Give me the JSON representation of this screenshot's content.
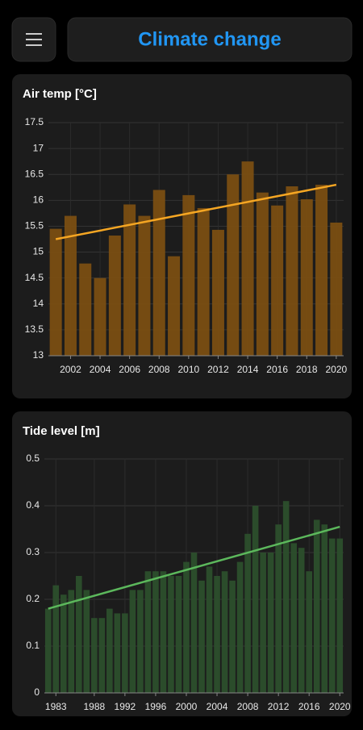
{
  "header": {
    "title": "Climate change"
  },
  "chart_data": [
    {
      "type": "bar",
      "title": "Air temp [°C]",
      "x": [
        2001,
        2002,
        2003,
        2004,
        2005,
        2006,
        2007,
        2008,
        2009,
        2010,
        2011,
        2012,
        2013,
        2014,
        2015,
        2016,
        2017,
        2018,
        2019,
        2020
      ],
      "values": [
        15.45,
        15.7,
        14.78,
        14.5,
        15.32,
        15.92,
        15.7,
        16.2,
        14.92,
        16.1,
        15.85,
        15.43,
        16.5,
        16.75,
        16.15,
        15.9,
        16.27,
        16.02,
        16.3,
        15.57
      ],
      "color": "#7a4e12",
      "trend": {
        "x": [
          2001,
          2020
        ],
        "values": [
          15.25,
          16.3
        ],
        "color": "#f5a623"
      },
      "xlim": [
        2000.5,
        2020.5
      ],
      "xticks": [
        2002,
        2004,
        2006,
        2008,
        2010,
        2012,
        2014,
        2016,
        2018,
        2020
      ],
      "ylim": [
        13,
        17.5
      ],
      "yticks": [
        13,
        13.5,
        14,
        14.5,
        15,
        15.5,
        16,
        16.5,
        17,
        17.5
      ],
      "grid": true
    },
    {
      "type": "bar",
      "title": "Tide level [m]",
      "x": [
        1982,
        1983,
        1984,
        1985,
        1986,
        1987,
        1988,
        1989,
        1990,
        1991,
        1992,
        1993,
        1994,
        1995,
        1996,
        1997,
        1998,
        1999,
        2000,
        2001,
        2002,
        2003,
        2004,
        2005,
        2006,
        2007,
        2008,
        2009,
        2010,
        2011,
        2012,
        2013,
        2014,
        2015,
        2016,
        2017,
        2018,
        2019,
        2020
      ],
      "values": [
        0.18,
        0.23,
        0.21,
        0.22,
        0.25,
        0.22,
        0.16,
        0.16,
        0.18,
        0.17,
        0.17,
        0.22,
        0.22,
        0.26,
        0.26,
        0.26,
        0.25,
        0.25,
        0.28,
        0.3,
        0.24,
        0.27,
        0.25,
        0.26,
        0.24,
        0.28,
        0.34,
        0.4,
        0.3,
        0.3,
        0.36,
        0.41,
        0.32,
        0.31,
        0.26,
        0.37,
        0.36,
        0.33,
        0.33
      ],
      "color": "#2c4f2c",
      "trend": {
        "x": [
          1982,
          2020
        ],
        "values": [
          0.18,
          0.355
        ],
        "color": "#5cb85c"
      },
      "xlim": [
        1981.5,
        2020.5
      ],
      "xticks": [
        1983,
        1988,
        1992,
        1996,
        2000,
        2004,
        2008,
        2012,
        2016,
        2020
      ],
      "ylim": [
        0,
        0.5
      ],
      "yticks": [
        0,
        0.1,
        0.2,
        0.3,
        0.4,
        0.5
      ],
      "grid": true
    }
  ]
}
